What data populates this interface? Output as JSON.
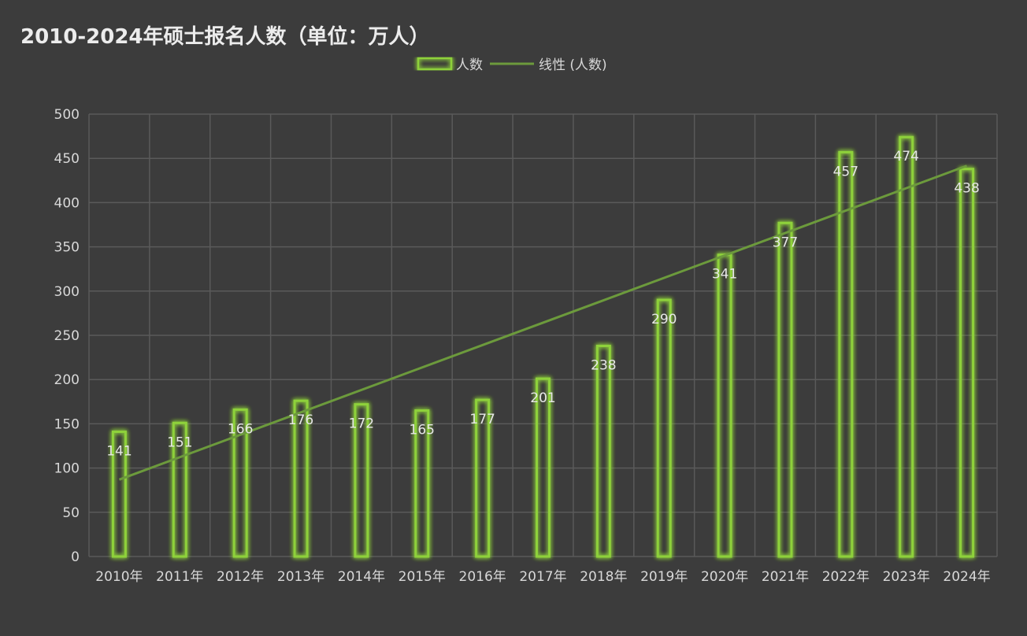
{
  "chart_data": {
    "type": "bar",
    "title": "2010-2024年硕士报名人数（单位：万人）",
    "categories": [
      "2010年",
      "2011年",
      "2012年",
      "2013年",
      "2014年",
      "2015年",
      "2016年",
      "2017年",
      "2018年",
      "2019年",
      "2020年",
      "2021年",
      "2022年",
      "2023年",
      "2024年"
    ],
    "series": [
      {
        "name": "人数",
        "values": [
          141,
          151,
          166,
          176,
          172,
          165,
          177,
          201,
          238,
          290,
          341,
          377,
          457,
          474,
          438
        ]
      }
    ],
    "trendline": {
      "name": "线性 (人数)",
      "type": "linear",
      "of_series": "人数"
    },
    "ylim": [
      0,
      500
    ],
    "yticks": [
      0,
      50,
      100,
      150,
      200,
      250,
      300,
      350,
      400,
      450,
      500
    ],
    "grid": true,
    "legend_position": "top-center",
    "xlabel": "",
    "ylabel": "",
    "colors": {
      "background": "#3c3c3c",
      "bar_stroke": "#8ed13a",
      "bar_glow": "#6fd21e",
      "trendline": "#6c9a3c",
      "grid": "#5a5a5a",
      "text": "#d8d8d8"
    }
  }
}
